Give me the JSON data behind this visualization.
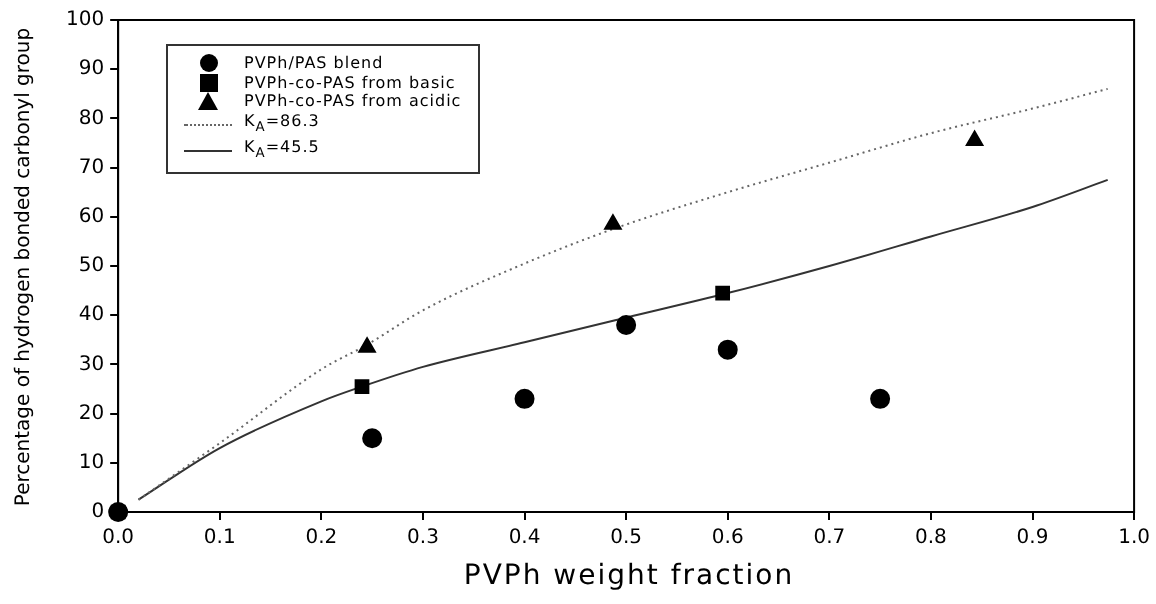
{
  "chart_data": {
    "type": "scatter",
    "xlabel": "PVPh weight fraction",
    "ylabel": "Percentage of hydrogen bonded carbonyl group",
    "xlim": [
      0,
      1
    ],
    "xticks": [
      {
        "value": 0,
        "label": "0.0"
      },
      0.1,
      0.2,
      0.3,
      0.4,
      0.5,
      0.6,
      0.7,
      0.8,
      0.9,
      {
        "value": 1,
        "label": "1.0"
      }
    ],
    "ylim": [
      0,
      100
    ],
    "yticks": [
      0,
      10,
      20,
      30,
      40,
      50,
      60,
      70,
      80,
      90,
      100
    ],
    "grid": false,
    "legend": "top left",
    "series": [
      {
        "name": "PVPh/PAS blend",
        "type": "scatter",
        "marker": "circle",
        "color": "#000000",
        "x": [
          0,
          0.25,
          0.4,
          0.5,
          0.6,
          0.75
        ],
        "values": [
          0,
          15,
          23,
          38,
          33,
          23
        ]
      },
      {
        "name": "PVPh-co-PAS from basic",
        "type": "scatter",
        "marker": "square",
        "color": "#000000",
        "x": [
          0,
          0.24,
          0.595
        ],
        "values": [
          0,
          25.5,
          44.5
        ]
      },
      {
        "name": "PVPh-co-PAS from acidic",
        "type": "scatter",
        "marker": "triangle",
        "color": "#000000",
        "x": [
          0.245,
          0.487,
          0.843
        ],
        "values": [
          33.5,
          58.5,
          75.5
        ]
      },
      {
        "name": "K$_{A}$=86.3",
        "type": "line",
        "marker": "none",
        "line_style": "dotted",
        "color": "#666666",
        "x": [
          0.02,
          0.1,
          0.2,
          0.245,
          0.3,
          0.4,
          0.487,
          0.6,
          0.7,
          0.8,
          0.9,
          0.974
        ],
        "values": [
          2.5,
          14,
          29,
          34,
          41,
          50.5,
          57.5,
          65,
          71,
          77,
          82,
          86
        ]
      },
      {
        "name": "K$_{A}$=45.5",
        "type": "line",
        "marker": "none",
        "line_style": "solid",
        "color": "#333333",
        "x": [
          0.02,
          0.1,
          0.2,
          0.24,
          0.3,
          0.4,
          0.5,
          0.6,
          0.7,
          0.8,
          0.9,
          0.974
        ],
        "values": [
          2.5,
          13,
          22.5,
          25.5,
          29.5,
          34.5,
          39.5,
          44.5,
          50,
          56,
          62,
          67.5
        ]
      }
    ]
  }
}
